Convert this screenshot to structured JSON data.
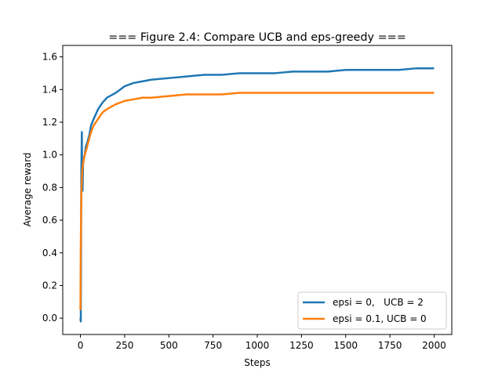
{
  "chart_data": {
    "type": "line",
    "title": "=== Figure 2.4: Compare UCB and eps-greedy ===",
    "xlabel": "Steps",
    "ylabel": "Average reward",
    "xlim": [
      -100,
      2100
    ],
    "ylim": [
      -0.1,
      1.67
    ],
    "xticks": [
      0,
      250,
      500,
      750,
      1000,
      1250,
      1500,
      1750,
      2000
    ],
    "xtick_labels": [
      "0",
      "250",
      "500",
      "750",
      "1000",
      "1250",
      "1500",
      "1750",
      "2000"
    ],
    "yticks": [
      0.0,
      0.2,
      0.4,
      0.6,
      0.8,
      1.0,
      1.2,
      1.4,
      1.6
    ],
    "ytick_labels": [
      "0.0",
      "0.2",
      "0.4",
      "0.6",
      "0.8",
      "1.0",
      "1.2",
      "1.4",
      "1.6"
    ],
    "grid": false,
    "legend_position": "lower-right",
    "series": [
      {
        "name": "epsi = 0,   UCB = 2",
        "color": "#1f77b4",
        "x": [
          0,
          2,
          5,
          8,
          10,
          12,
          15,
          20,
          25,
          30,
          40,
          50,
          60,
          75,
          100,
          125,
          150,
          200,
          250,
          300,
          350,
          400,
          500,
          600,
          700,
          800,
          900,
          1000,
          1100,
          1200,
          1300,
          1400,
          1500,
          1600,
          1700,
          1800,
          1900,
          2000
        ],
        "values": [
          0.0,
          -0.02,
          0.9,
          1.14,
          0.85,
          0.78,
          0.95,
          0.98,
          1.0,
          1.05,
          1.08,
          1.12,
          1.18,
          1.22,
          1.28,
          1.32,
          1.35,
          1.38,
          1.42,
          1.44,
          1.45,
          1.46,
          1.47,
          1.48,
          1.49,
          1.49,
          1.5,
          1.5,
          1.5,
          1.51,
          1.51,
          1.51,
          1.52,
          1.52,
          1.52,
          1.52,
          1.53,
          1.53
        ]
      },
      {
        "name": "epsi = 0.1, UCB = 0",
        "color": "#ff7f0e",
        "x": [
          0,
          2,
          5,
          8,
          10,
          15,
          20,
          25,
          30,
          40,
          50,
          60,
          75,
          100,
          125,
          150,
          200,
          250,
          300,
          350,
          400,
          500,
          600,
          700,
          800,
          900,
          1000,
          1100,
          1200,
          1300,
          1400,
          1500,
          1600,
          1700,
          1800,
          1900,
          2000
        ],
        "values": [
          0.05,
          0.45,
          0.75,
          0.85,
          0.9,
          0.95,
          0.98,
          1.0,
          1.02,
          1.06,
          1.1,
          1.14,
          1.18,
          1.22,
          1.26,
          1.28,
          1.31,
          1.33,
          1.34,
          1.35,
          1.35,
          1.36,
          1.37,
          1.37,
          1.37,
          1.38,
          1.38,
          1.38,
          1.38,
          1.38,
          1.38,
          1.38,
          1.38,
          1.38,
          1.38,
          1.38,
          1.38
        ]
      }
    ]
  }
}
